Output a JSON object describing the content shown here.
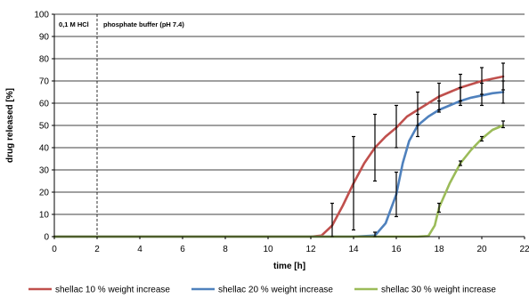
{
  "chart_data": {
    "type": "line",
    "xlabel": "time [h]",
    "ylabel": "drug released [%]",
    "xlim": [
      0,
      22
    ],
    "ylim": [
      0,
      100
    ],
    "xticks": [
      0,
      2,
      4,
      6,
      8,
      10,
      12,
      14,
      16,
      18,
      20,
      22
    ],
    "yticks": [
      0,
      10,
      20,
      30,
      40,
      50,
      60,
      70,
      80,
      90,
      100
    ],
    "grid": "horizontal",
    "legend_position": "bottom",
    "phase_divider_x": 2,
    "annotations": [
      {
        "text": "0,1 M HCl",
        "region": "before-divider"
      },
      {
        "text": "phosphate buffer (pH 7.4)",
        "region": "after-divider"
      }
    ],
    "series": [
      {
        "name": "shellac 10 % weight increase",
        "color": "#c0504d",
        "x": [
          0,
          2,
          4,
          6,
          8,
          10,
          12,
          12.5,
          13,
          13.5,
          14,
          14.5,
          15,
          15.5,
          16,
          16.5,
          17,
          17.5,
          18,
          18.5,
          19,
          19.5,
          20,
          20.5,
          21
        ],
        "y": [
          0,
          0,
          0,
          0,
          0,
          0,
          0,
          0.5,
          5,
          14,
          24,
          33,
          40,
          45,
          49,
          54,
          57,
          60,
          63,
          65,
          67,
          68.5,
          70,
          71,
          72
        ],
        "error_bars": [
          {
            "x": 13,
            "low": 0,
            "high": 15
          },
          {
            "x": 14,
            "low": 3,
            "high": 45
          },
          {
            "x": 15,
            "low": 25,
            "high": 55
          },
          {
            "x": 16,
            "low": 40,
            "high": 59
          },
          {
            "x": 17,
            "low": 50,
            "high": 65
          },
          {
            "x": 18,
            "low": 57,
            "high": 69
          },
          {
            "x": 19,
            "low": 61,
            "high": 73
          },
          {
            "x": 20,
            "low": 64,
            "high": 76
          },
          {
            "x": 21,
            "low": 66,
            "high": 78
          }
        ]
      },
      {
        "name": "shellac 20 % weight increase",
        "color": "#4f81bd",
        "x": [
          0,
          2,
          4,
          6,
          8,
          10,
          12,
          14,
          15,
          15.5,
          16,
          16.3,
          16.6,
          17,
          17.5,
          18,
          18.5,
          19,
          19.5,
          20,
          20.5,
          21
        ],
        "y": [
          0,
          0,
          0,
          0,
          0,
          0,
          0,
          0,
          0.5,
          6,
          19,
          33,
          43,
          50,
          54,
          57,
          59,
          61,
          62.5,
          63.5,
          64.5,
          65
        ],
        "error_bars": [
          {
            "x": 15,
            "low": 0,
            "high": 2
          },
          {
            "x": 16,
            "low": 9,
            "high": 29
          },
          {
            "x": 17,
            "low": 45,
            "high": 55
          },
          {
            "x": 18,
            "low": 56,
            "high": 61
          },
          {
            "x": 19,
            "low": 59,
            "high": 67
          },
          {
            "x": 20,
            "low": 59,
            "high": 69
          },
          {
            "x": 21,
            "low": 60,
            "high": 70
          }
        ]
      },
      {
        "name": "shellac 30 % weight increase",
        "color": "#9bbb59",
        "x": [
          0,
          2,
          4,
          6,
          8,
          10,
          12,
          14,
          16,
          17,
          17.5,
          17.8,
          18,
          18.5,
          19,
          19.5,
          20,
          20.5,
          21
        ],
        "y": [
          0,
          0,
          0,
          0,
          0,
          0,
          0,
          0,
          0,
          0,
          0.3,
          5,
          13,
          24,
          33,
          39,
          44,
          48,
          50
        ],
        "error_bars": [
          {
            "x": 18,
            "low": 11,
            "high": 15
          },
          {
            "x": 19,
            "low": 32,
            "high": 34
          },
          {
            "x": 20,
            "low": 43,
            "high": 45
          },
          {
            "x": 21,
            "low": 49,
            "high": 52
          }
        ]
      }
    ]
  }
}
